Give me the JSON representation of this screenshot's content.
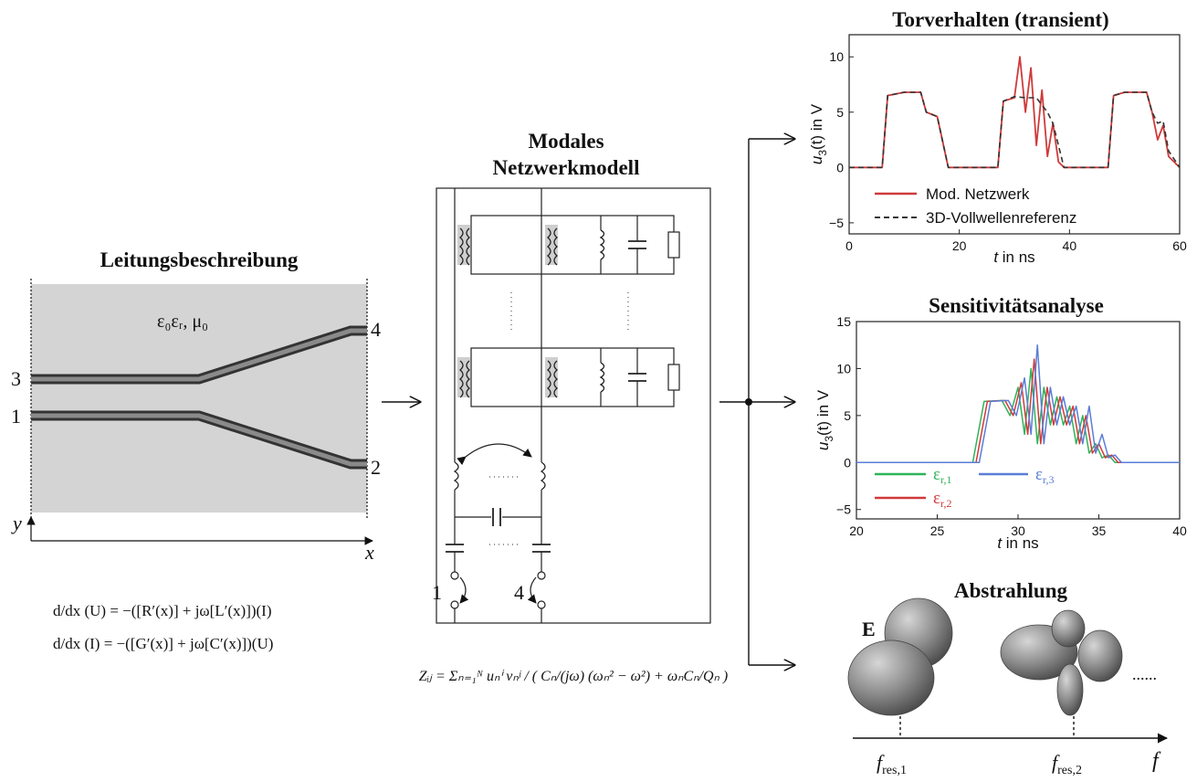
{
  "line_panel": {
    "title": "Leitungsbeschreibung",
    "medium": "ε₀εᵣ, μ₀",
    "ports": [
      "3",
      "1",
      "4",
      "2"
    ],
    "axis_y": "y",
    "axis_x": "x",
    "eq1": "d/dx (U) = −([R′(x)] + jω[L′(x)])(I)",
    "eq2": "d/dx (I) = −([G′(x)] + jω[C′(x)])(U)"
  },
  "network_panel": {
    "title_line1": "Modales",
    "title_line2": "Netzwerkmodell",
    "port_left": "1",
    "port_right": "4",
    "formula": "Zᵢⱼ = Σₙ₌₁ᴺ uₙⁱ vₙʲ / ( Cₙ/(jω) (ωₙ² − ω²) + ωₙCₙ/Qₙ )"
  },
  "transient_panel": {
    "title": "Torverhalten (transient)",
    "ylabel_main": "u",
    "ylabel_sub": "3",
    "ylabel_rest": "(t) in V",
    "xlabel_var": "t",
    "xlabel_rest": " in ns",
    "legend": [
      "Mod. Netzwerk",
      "3D-Vollwellenreferenz"
    ],
    "xticks": [
      "0",
      "20",
      "40",
      "60"
    ],
    "yticks": [
      "10",
      "5",
      "0",
      "−5"
    ],
    "colors": {
      "model": "#d03a3a",
      "reference": "#333333"
    }
  },
  "sensitivity_panel": {
    "title": "Sensitivitätsanalyse",
    "ylabel_main": "u",
    "ylabel_sub": "3",
    "ylabel_rest": "(t) in V",
    "xlabel_var": "t",
    "xlabel_rest": " in ns",
    "legend": [
      {
        "base": "ε",
        "sub": "r,1",
        "color": "#2fb35a"
      },
      {
        "base": "ε",
        "sub": "r,2",
        "color": "#d03a3a"
      },
      {
        "base": "ε",
        "sub": "r,3",
        "color": "#5a7ed6"
      }
    ],
    "xticks": [
      "20",
      "25",
      "30",
      "35",
      "40"
    ],
    "yticks": [
      "15",
      "10",
      "5",
      "0",
      "−5"
    ]
  },
  "radiation_panel": {
    "title": "Abstrahlung",
    "field_label": "E",
    "freq1_base": "f",
    "freq1_sub": "res,1",
    "freq2_base": "f",
    "freq2_sub": "res,2",
    "axis_label": "f",
    "ellipsis": "......"
  },
  "chart_data": [
    {
      "type": "line",
      "title": "Torverhalten (transient)",
      "xlabel": "t in ns",
      "ylabel": "u3(t) in V",
      "xlim": [
        0,
        60
      ],
      "ylim": [
        -6,
        12
      ],
      "grid": false,
      "legend_position": "bottom-left",
      "series": [
        {
          "name": "Mod. Netzwerk",
          "x": [
            0,
            6,
            7,
            10,
            13,
            14,
            16,
            18,
            27,
            28,
            30,
            31,
            32,
            33,
            34,
            35,
            36,
            37,
            38,
            39,
            47,
            48,
            50,
            54,
            55,
            56,
            57,
            58,
            60
          ],
          "y": [
            0,
            0,
            6.5,
            6.8,
            6.8,
            5,
            4.6,
            0,
            0,
            6,
            6.3,
            10,
            5,
            9,
            2,
            7,
            1,
            4,
            0.5,
            0,
            0,
            6.5,
            6.8,
            6.8,
            5,
            2.5,
            3.8,
            1,
            0
          ]
        },
        {
          "name": "3D-Vollwellenreferenz",
          "x": [
            0,
            6,
            7,
            10,
            13,
            14,
            16,
            18,
            27,
            28,
            30,
            32,
            34,
            36,
            37,
            39,
            47,
            48,
            50,
            54,
            55,
            56,
            57,
            58,
            60
          ],
          "y": [
            0,
            0,
            6.5,
            6.8,
            6.8,
            5,
            4.6,
            0,
            0,
            6,
            6.4,
            6.3,
            6.3,
            5,
            4,
            0,
            0,
            6.5,
            6.8,
            6.8,
            5,
            4,
            4.2,
            1.5,
            0
          ]
        }
      ]
    },
    {
      "type": "line",
      "title": "Sensitivitätsanalyse",
      "xlabel": "t in ns",
      "ylabel": "u3(t) in V",
      "xlim": [
        20,
        40
      ],
      "ylim": [
        -6,
        15
      ],
      "grid": false,
      "legend_position": "bottom-left",
      "series": [
        {
          "name": "εr,1",
          "x": [
            20,
            27.2,
            27.9,
            29,
            29.5,
            30,
            30.4,
            30.8,
            31.2,
            31.6,
            32,
            32.4,
            32.8,
            33.2,
            33.6,
            34,
            34.4,
            34.8,
            35.2,
            35.6,
            36,
            37,
            40
          ],
          "y": [
            0,
            0,
            6.5,
            6.6,
            5,
            8,
            3,
            10,
            2,
            8,
            4,
            7,
            4,
            6,
            2,
            5,
            1,
            2,
            0.5,
            0.8,
            0,
            0,
            0
          ]
        },
        {
          "name": "εr,2",
          "x": [
            20,
            27.4,
            28.1,
            29.2,
            29.7,
            30.2,
            30.6,
            31,
            31.4,
            31.8,
            32.2,
            32.6,
            33,
            33.4,
            33.8,
            34.2,
            34.6,
            35,
            35.4,
            35.8,
            36.2,
            37.2,
            40
          ],
          "y": [
            0,
            0,
            6.5,
            6.6,
            5,
            8.5,
            3,
            11,
            2,
            8,
            4,
            7,
            4,
            6,
            2,
            5,
            1,
            2,
            0.5,
            0.8,
            0,
            0,
            0
          ]
        },
        {
          "name": "εr,3",
          "x": [
            20,
            27.6,
            28.3,
            29.4,
            29.9,
            30.4,
            30.8,
            31.2,
            31.6,
            32,
            32.4,
            32.8,
            33.2,
            33.6,
            34,
            34.4,
            34.8,
            35.2,
            35.6,
            36,
            36.4,
            37.4,
            40
          ],
          "y": [
            0,
            0,
            6.5,
            6.6,
            5,
            9,
            3,
            12.5,
            2,
            8,
            4,
            7,
            4,
            6,
            2,
            6,
            1,
            3,
            0.5,
            0.8,
            0,
            0,
            0
          ]
        }
      ]
    }
  ]
}
